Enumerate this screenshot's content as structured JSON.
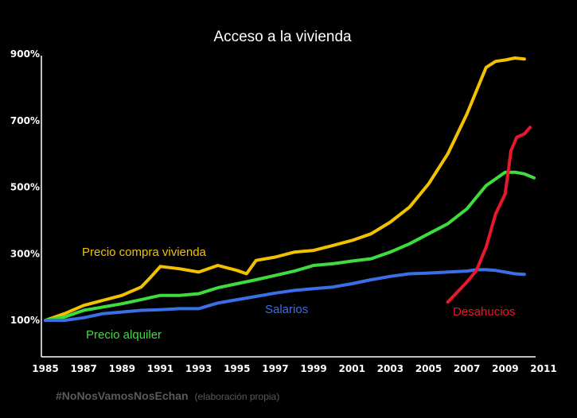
{
  "chart_data": {
    "type": "line",
    "title": "Acceso a la vivienda",
    "xlabel": "",
    "ylabel": "",
    "xlim": [
      1985,
      2011
    ],
    "ylim": [
      0,
      900
    ],
    "x_ticks": [
      "1985",
      "1987",
      "1989",
      "1991",
      "1993",
      "1995",
      "1997",
      "1999",
      "2001",
      "2003",
      "2005",
      "2007",
      "2009",
      "2011"
    ],
    "y_ticks": [
      "100%",
      "300%",
      "500%",
      "700%",
      "900%"
    ],
    "grid": false,
    "legend": "inline labels",
    "series": [
      {
        "name": "Precio compra vivienda",
        "color": "#f2c200",
        "x": [
          1985,
          1986,
          1987,
          1988,
          1989,
          1990,
          1990.5,
          1991,
          1992,
          1993,
          1994,
          1995,
          1995.5,
          1996,
          1997,
          1998,
          1999,
          2000,
          2001,
          2002,
          2003,
          2004,
          2005,
          2006,
          2007,
          2007.5,
          2008,
          2008.5,
          2009,
          2009.5,
          2010
        ],
        "y": [
          100,
          120,
          145,
          160,
          175,
          200,
          230,
          262,
          255,
          245,
          265,
          250,
          240,
          280,
          290,
          305,
          310,
          325,
          340,
          360,
          395,
          440,
          510,
          600,
          720,
          790,
          860,
          878,
          882,
          888,
          885
        ]
      },
      {
        "name": "Precio alquiler",
        "color": "#3fdc3f",
        "x": [
          1985,
          1986,
          1987,
          1988,
          1989,
          1990,
          1991,
          1992,
          1993,
          1994,
          1995,
          1996,
          1997,
          1998,
          1999,
          2000,
          2001,
          2002,
          2003,
          2004,
          2005,
          2006,
          2007,
          2007.5,
          2008,
          2008.5,
          2009,
          2009.5,
          2010,
          2010.5
        ],
        "y": [
          100,
          110,
          130,
          140,
          150,
          162,
          175,
          175,
          180,
          198,
          210,
          222,
          235,
          248,
          265,
          270,
          278,
          285,
          305,
          330,
          360,
          390,
          435,
          470,
          505,
          525,
          545,
          545,
          540,
          528
        ]
      },
      {
        "name": "Salarios",
        "color": "#3a6fe8",
        "x": [
          1985,
          1986,
          1987,
          1988,
          1989,
          1990,
          1991,
          1992,
          1993,
          1994,
          1995,
          1996,
          1997,
          1998,
          1999,
          2000,
          2001,
          2002,
          2003,
          2004,
          2005,
          2006,
          2007,
          2007.5,
          2008,
          2008.5,
          2009,
          2009.5,
          2010
        ],
        "y": [
          100,
          100,
          108,
          120,
          125,
          130,
          132,
          135,
          135,
          152,
          162,
          172,
          182,
          190,
          195,
          200,
          210,
          222,
          232,
          240,
          242,
          245,
          248,
          252,
          252,
          250,
          245,
          240,
          238
        ]
      },
      {
        "name": "Desahucios",
        "color": "#e8192c",
        "x": [
          2006,
          2006.5,
          2007,
          2007.5,
          2008,
          2008.5,
          2009,
          2009.3,
          2009.6,
          2010,
          2010.3
        ],
        "y": [
          155,
          185,
          215,
          250,
          320,
          420,
          480,
          610,
          650,
          660,
          680
        ]
      }
    ]
  },
  "labels": {
    "precio_compra": "Precio compra vivienda",
    "precio_alquiler": "Precio alquiler",
    "salarios": "Salarios",
    "desahucios": "Desahucios"
  },
  "footer": {
    "hashtag": "#NoNosVamosNosEchan",
    "note": "(elaboración propia)"
  }
}
